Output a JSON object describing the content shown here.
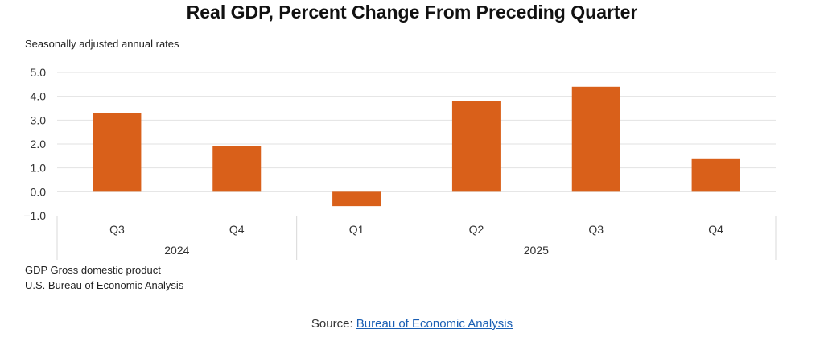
{
  "chart_data": {
    "type": "bar",
    "title": "Real GDP, Percent Change From Preceding Quarter",
    "subtitle": "Seasonally adjusted annual rates",
    "categories": [
      "Q3",
      "Q4",
      "Q1",
      "Q2",
      "Q3",
      "Q4"
    ],
    "groups": [
      {
        "label": "2024",
        "count": 2
      },
      {
        "label": "2025",
        "count": 4
      }
    ],
    "values": [
      3.3,
      1.9,
      -0.6,
      3.8,
      4.4,
      1.4
    ],
    "ylim": [
      -1.0,
      5.0
    ],
    "yticks": [
      "5.0",
      "4.0",
      "3.0",
      "2.0",
      "1.0",
      "0.0",
      "-1.0"
    ],
    "grid": true,
    "bar_color": "#d9601a"
  },
  "notes": [
    "GDP Gross domestic product",
    "U.S. Bureau of Economic Analysis"
  ],
  "source": {
    "prefix": "Source: ",
    "link": "Bureau of Economic Analysis"
  }
}
